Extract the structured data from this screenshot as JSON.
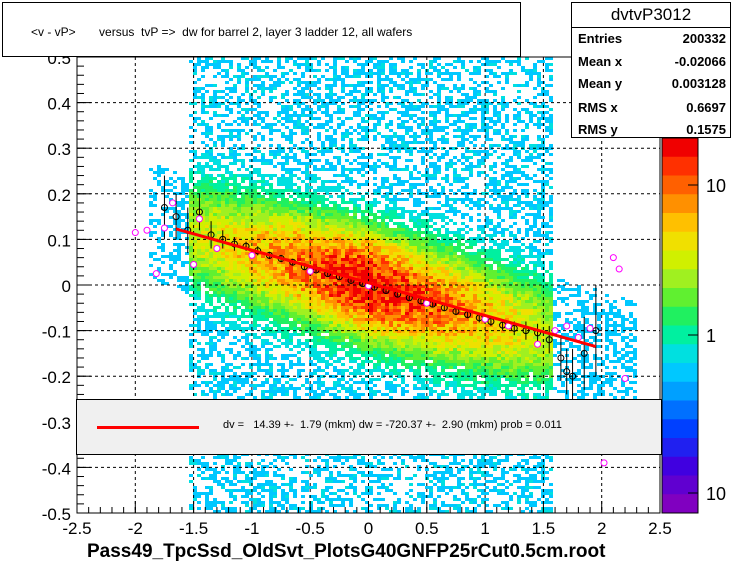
{
  "title": "<v - vP>       versus  tvP =>  dw for barrel 2, layer 3 ladder 12, all wafers",
  "stats": {
    "name": "dvtvP3012",
    "rows": [
      {
        "label": "Entries",
        "value": "200332"
      },
      {
        "label": "Mean x",
        "value": "-0.02066"
      },
      {
        "label": "Mean y",
        "value": "0.003128"
      },
      {
        "label": "RMS x",
        "value": "0.6697"
      },
      {
        "label": "RMS y",
        "value": "0.1575"
      }
    ]
  },
  "fit_text": "dv =   14.39 +-  1.79 (mkm) dw = -720.37 +-  2.90 (mkm) prob = 0.011",
  "xtitle": "Pass49_TpcSsd_OldSvt_PlotsG40GNFP25rCut0.5cm.root",
  "colors": {
    "fit_line": "#ff0000",
    "profile_black": "#000000",
    "profile_magenta": "#ff00ff"
  },
  "chart_data": {
    "type": "heatmap",
    "xlim": [
      -2.5,
      2.5
    ],
    "ylim": [
      -0.5,
      0.5
    ],
    "xticks": [
      "-2.5",
      "-2",
      "-1.5",
      "-1",
      "-0.5",
      "0",
      "0.5",
      "1",
      "1.5",
      "2",
      "2.5"
    ],
    "yticks": [
      "-0.5",
      "-0.4",
      "-0.3",
      "-0.2",
      "-0.1",
      "0",
      "0.1",
      "0.2",
      "0.3",
      "0.4",
      "0.5"
    ],
    "zticks": [
      "10",
      "1",
      "10"
    ],
    "grid": true,
    "fit_line": {
      "x": [
        -1.65,
        1.95
      ],
      "y": [
        0.123,
        -0.135
      ]
    },
    "profile_black": [
      {
        "x": -1.75,
        "y": 0.17,
        "err": 0.07
      },
      {
        "x": -1.65,
        "y": 0.15,
        "err": 0.05
      },
      {
        "x": -1.55,
        "y": 0.12,
        "err": 0.05
      },
      {
        "x": -1.45,
        "y": 0.16,
        "err": 0.04
      },
      {
        "x": -1.35,
        "y": 0.11,
        "err": 0.03
      },
      {
        "x": -1.25,
        "y": 0.1,
        "err": 0.02
      },
      {
        "x": -1.15,
        "y": 0.09,
        "err": 0.015
      },
      {
        "x": -1.05,
        "y": 0.085,
        "err": 0.01
      },
      {
        "x": -0.95,
        "y": 0.075,
        "err": 0.01
      },
      {
        "x": -0.85,
        "y": 0.065,
        "err": 0.008
      },
      {
        "x": -0.75,
        "y": 0.058,
        "err": 0.008
      },
      {
        "x": -0.65,
        "y": 0.05,
        "err": 0.006
      },
      {
        "x": -0.55,
        "y": 0.04,
        "err": 0.006
      },
      {
        "x": -0.45,
        "y": 0.033,
        "err": 0.005
      },
      {
        "x": -0.35,
        "y": 0.025,
        "err": 0.005
      },
      {
        "x": -0.25,
        "y": 0.018,
        "err": 0.005
      },
      {
        "x": -0.15,
        "y": 0.01,
        "err": 0.005
      },
      {
        "x": -0.05,
        "y": 0.003,
        "err": 0.005
      },
      {
        "x": 0.05,
        "y": -0.005,
        "err": 0.005
      },
      {
        "x": 0.15,
        "y": -0.012,
        "err": 0.005
      },
      {
        "x": 0.25,
        "y": -0.02,
        "err": 0.005
      },
      {
        "x": 0.35,
        "y": -0.028,
        "err": 0.005
      },
      {
        "x": 0.45,
        "y": -0.035,
        "err": 0.006
      },
      {
        "x": 0.55,
        "y": -0.042,
        "err": 0.006
      },
      {
        "x": 0.65,
        "y": -0.05,
        "err": 0.007
      },
      {
        "x": 0.75,
        "y": -0.058,
        "err": 0.008
      },
      {
        "x": 0.85,
        "y": -0.065,
        "err": 0.008
      },
      {
        "x": 0.95,
        "y": -0.072,
        "err": 0.01
      },
      {
        "x": 1.05,
        "y": -0.08,
        "err": 0.01
      },
      {
        "x": 1.15,
        "y": -0.088,
        "err": 0.012
      },
      {
        "x": 1.25,
        "y": -0.095,
        "err": 0.015
      },
      {
        "x": 1.35,
        "y": -0.1,
        "err": 0.02
      },
      {
        "x": 1.45,
        "y": -0.105,
        "err": 0.02
      },
      {
        "x": 1.55,
        "y": -0.12,
        "err": 0.03
      },
      {
        "x": 1.65,
        "y": -0.16,
        "err": 0.05
      },
      {
        "x": 1.75,
        "y": -0.2,
        "err": 0.06
      },
      {
        "x": 1.85,
        "y": -0.15,
        "err": 0.08
      },
      {
        "x": 1.95,
        "y": -0.1,
        "err": 0.1
      },
      {
        "x": 1.7,
        "y": -0.19,
        "err": 0.05
      }
    ],
    "profile_magenta": [
      {
        "x": -2.0,
        "y": 0.115
      },
      {
        "x": -1.9,
        "y": 0.12
      },
      {
        "x": -1.82,
        "y": 0.025
      },
      {
        "x": -1.75,
        "y": 0.125
      },
      {
        "x": -1.68,
        "y": 0.18
      },
      {
        "x": -1.5,
        "y": 0.045
      },
      {
        "x": -1.45,
        "y": 0.145
      },
      {
        "x": -1.3,
        "y": 0.08
      },
      {
        "x": -1.0,
        "y": 0.065
      },
      {
        "x": -0.5,
        "y": 0.03
      },
      {
        "x": 0.0,
        "y": -0.002
      },
      {
        "x": 0.5,
        "y": -0.04
      },
      {
        "x": 1.0,
        "y": -0.075
      },
      {
        "x": 1.2,
        "y": -0.09
      },
      {
        "x": 1.45,
        "y": -0.13
      },
      {
        "x": 1.6,
        "y": -0.1
      },
      {
        "x": 1.7,
        "y": -0.09
      },
      {
        "x": 1.8,
        "y": -0.115
      },
      {
        "x": 1.9,
        "y": -0.095
      },
      {
        "x": 2.02,
        "y": -0.39
      },
      {
        "x": 2.1,
        "y": 0.06
      },
      {
        "x": 2.15,
        "y": 0.035
      },
      {
        "x": 2.2,
        "y": -0.205
      }
    ]
  }
}
